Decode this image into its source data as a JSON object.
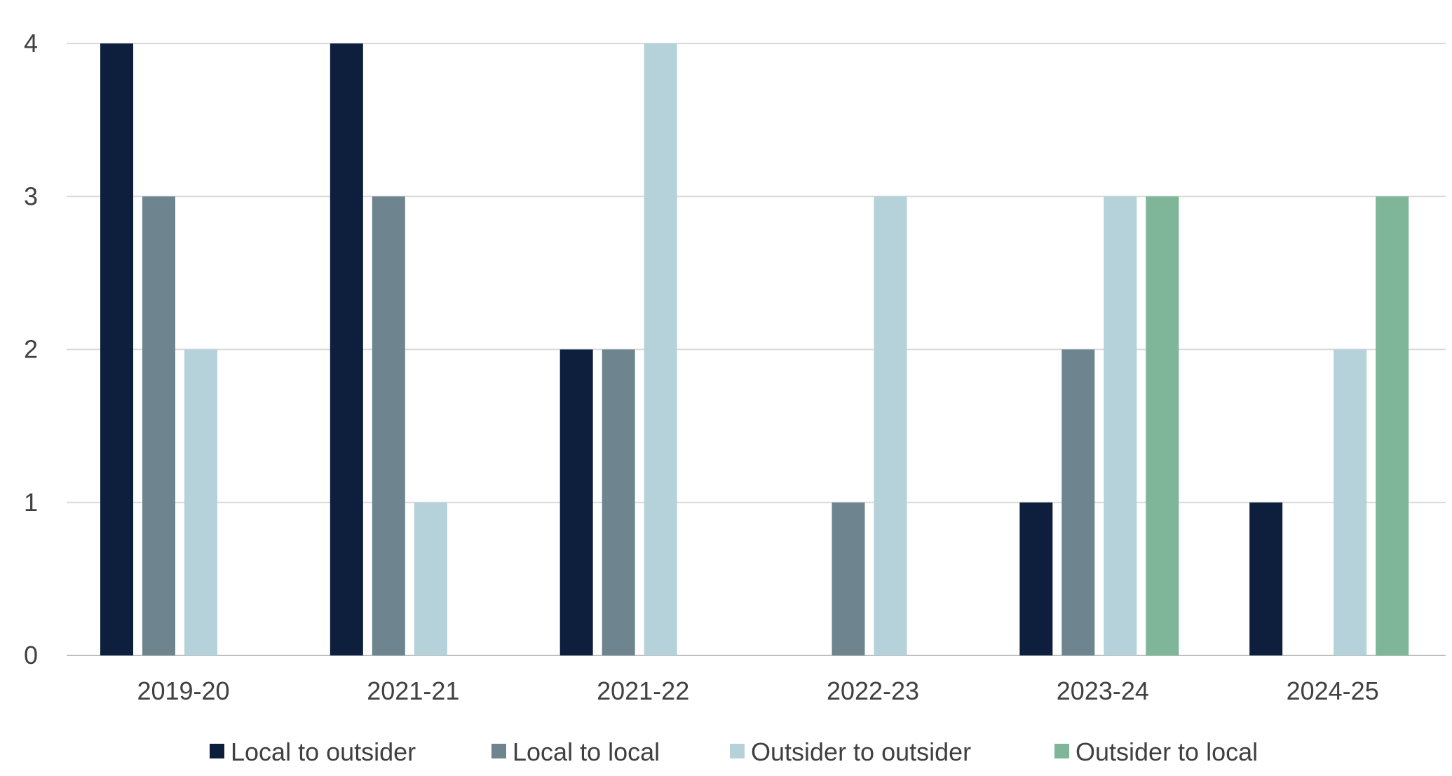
{
  "chart_data": {
    "type": "bar",
    "categories": [
      "2019-20",
      "2021-21",
      "2021-22",
      "2022-23",
      "2023-24",
      "2024-25"
    ],
    "series": [
      {
        "name": "Local to outsider",
        "color": "#0e1f3d",
        "values": [
          4,
          4,
          2,
          0,
          1,
          1
        ]
      },
      {
        "name": "Local to local",
        "color": "#6e858f",
        "values": [
          3,
          3,
          2,
          1,
          2,
          0
        ]
      },
      {
        "name": "Outsider to outsider",
        "color": "#b5d1d9",
        "values": [
          2,
          1,
          4,
          3,
          3,
          2
        ]
      },
      {
        "name": "Outsider to local",
        "color": "#7fb598",
        "values": [
          0,
          0,
          0,
          0,
          3,
          3
        ]
      }
    ],
    "ylim": [
      0,
      4
    ],
    "yticks": [
      0,
      1,
      2,
      3,
      4
    ],
    "grid": true,
    "legend": "bottom"
  }
}
